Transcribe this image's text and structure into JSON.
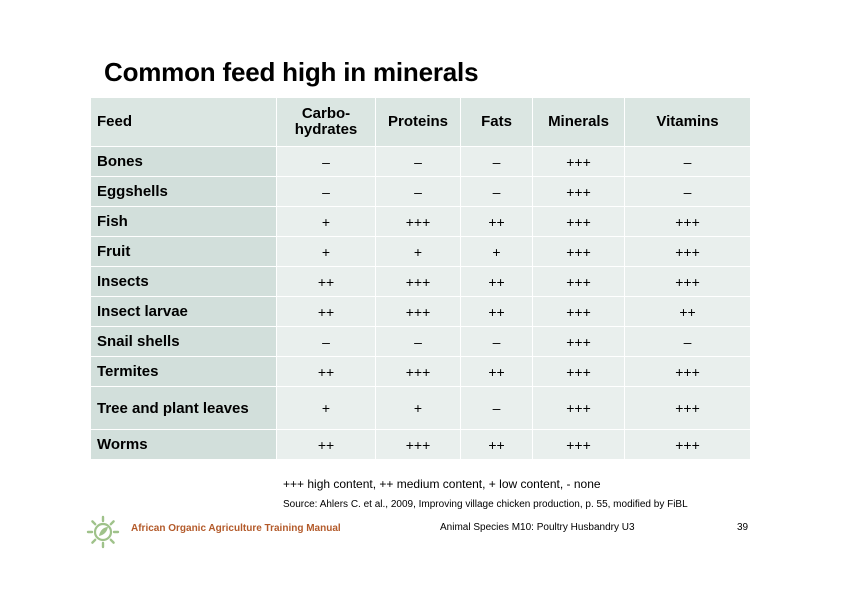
{
  "title": "Common feed high in minerals",
  "table": {
    "headers": [
      "Feed",
      "Carbo-\nhydrates",
      "Proteins",
      "Fats",
      "Minerals",
      "Vitamins"
    ],
    "rows": [
      [
        "Bones",
        "–",
        "–",
        "–",
        "+++",
        "–"
      ],
      [
        "Eggshells",
        "–",
        "–",
        "–",
        "+++",
        "–"
      ],
      [
        "Fish",
        "+",
        "+++",
        "++",
        "+++",
        "+++"
      ],
      [
        "Fruit",
        "+",
        "+",
        "+",
        "+++",
        "+++"
      ],
      [
        "Insects",
        "++",
        "+++",
        "++",
        "+++",
        "+++"
      ],
      [
        "Insect larvae",
        "++",
        "+++",
        "++",
        "+++",
        "++"
      ],
      [
        "Snail shells",
        "–",
        "–",
        "–",
        "+++",
        "–"
      ],
      [
        "Termites",
        "++",
        "+++",
        "++",
        "+++",
        "+++"
      ],
      [
        "Tree and plant leaves",
        "+",
        "+",
        "–",
        "+++",
        "+++"
      ],
      [
        "Worms",
        "++",
        "+++",
        "++",
        "+++",
        "+++"
      ]
    ]
  },
  "legend": "+++ high content, ++ medium content, + low content, - none",
  "source": "Source: Ahlers C. et al., 2009, Improving village chicken production, p. 55, modified by FiBL",
  "footer": {
    "manual": "African Organic Agriculture Training Manual",
    "unit": "Animal Species M10: Poultry Husbandry U3",
    "page": "39"
  },
  "colors": {
    "header_bg": "#dbe6e2",
    "first_col_bg": "#d2dfdb",
    "cell_bg": "#e9efed",
    "footer_accent": "#b35a2a",
    "logo_green": "#9fc28a"
  },
  "icons": {
    "logo": "sun-leaf-logo-icon"
  }
}
